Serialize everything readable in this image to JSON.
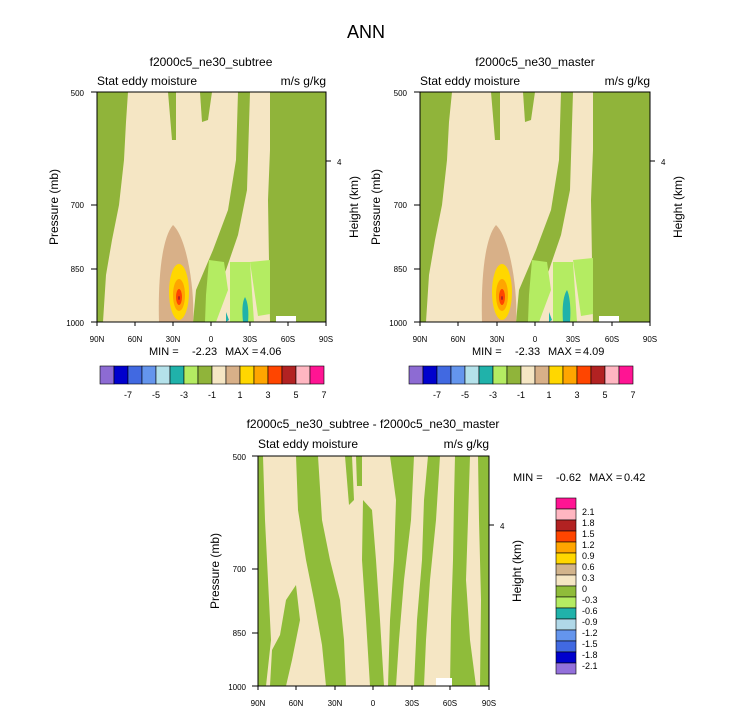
{
  "figure": {
    "title": "ANN"
  },
  "colors": {
    "levels": [
      "#8d6bd3",
      "#0000cd",
      "#4169e1",
      "#6495ed",
      "#b4e1ea",
      "#20b2aa",
      "#b4ec62",
      "#90b43a",
      "#f5e6c4",
      "#d8b088",
      "#ffd700",
      "#ffa500",
      "#ff4500",
      "#b22222",
      "#ffb6c1",
      "#ff1493"
    ],
    "diff_levels": [
      "#9370db",
      "#0000cd",
      "#4169e1",
      "#6495ed",
      "#b0d8e8",
      "#20b2aa",
      "#b4ec62",
      "#8fbc3a",
      "#f5e6c4",
      "#d2b48c",
      "#ffd700",
      "#ffa500",
      "#ff4500",
      "#b22222",
      "#ffb6c1",
      "#ff1493"
    ]
  },
  "panels": [
    {
      "title": "f2000c5_ne30_subtree",
      "left_label": "Stat eddy moisture",
      "right_label": "m/s g/kg",
      "ylabel": "Pressure (mb)",
      "y2label": "Height (km)",
      "min_label": "MIN =",
      "min_value": "-2.23",
      "max_label": "MAX =",
      "max_value": "4.06"
    },
    {
      "title": "f2000c5_ne30_master",
      "left_label": "Stat eddy moisture",
      "right_label": "m/s g/kg",
      "ylabel": "Pressure (mb)",
      "y2label": "Height (km)",
      "min_label": "MIN =",
      "min_value": "-2.33",
      "max_label": "MAX =",
      "max_value": "4.09"
    },
    {
      "title": "f2000c5_ne30_subtree - f2000c5_ne30_master",
      "left_label": "Stat eddy moisture",
      "right_label": "m/s g/kg",
      "ylabel": "Pressure (mb)",
      "y2label": "Height (km)",
      "min_label": "MIN =",
      "min_value": "-0.62",
      "max_label": "MAX =",
      "max_value": "0.42"
    }
  ],
  "colorbar_top": {
    "labels": [
      "-7",
      "-5",
      "-3",
      "-1",
      "1",
      "3",
      "5",
      "7"
    ]
  },
  "colorbar_diff": {
    "labels": [
      "2.1",
      "1.8",
      "1.5",
      "1.2",
      "0.9",
      "0.6",
      "0.3",
      "0",
      "-0.3",
      "-0.6",
      "-0.9",
      "-1.2",
      "-1.5",
      "-1.8",
      "-2.1"
    ]
  },
  "chart_data": [
    {
      "type": "heatmap",
      "title": "f2000c5_ne30_subtree",
      "x_ticks": [
        "90N",
        "60N",
        "30N",
        "0",
        "30S",
        "60S",
        "90S"
      ],
      "x_values": [
        90,
        60,
        30,
        0,
        -30,
        -60,
        -90
      ],
      "y_ticks": [
        "500",
        "700",
        "850",
        "1000"
      ],
      "y_values": [
        500,
        700,
        850,
        1000
      ],
      "ylim": [
        1000,
        500
      ],
      "y2_ticks": [
        "4"
      ],
      "ylabel": "Pressure (mb)",
      "y2label": "Height (km)",
      "min": -2.23,
      "max": 4.06,
      "levels": [
        -7,
        -6,
        -5,
        -4,
        -3,
        -2,
        -1,
        0,
        1,
        2,
        3,
        4,
        5,
        6,
        7
      ]
    },
    {
      "type": "heatmap",
      "title": "f2000c5_ne30_master",
      "x_ticks": [
        "90N",
        "60N",
        "30N",
        "0",
        "30S",
        "60S",
        "90S"
      ],
      "x_values": [
        90,
        60,
        30,
        0,
        -30,
        -60,
        -90
      ],
      "y_ticks": [
        "500",
        "700",
        "850",
        "1000"
      ],
      "y_values": [
        500,
        700,
        850,
        1000
      ],
      "ylim": [
        1000,
        500
      ],
      "y2_ticks": [
        "4"
      ],
      "ylabel": "Pressure (mb)",
      "y2label": "Height (km)",
      "min": -2.33,
      "max": 4.09,
      "levels": [
        -7,
        -6,
        -5,
        -4,
        -3,
        -2,
        -1,
        0,
        1,
        2,
        3,
        4,
        5,
        6,
        7
      ]
    },
    {
      "type": "heatmap",
      "title": "f2000c5_ne30_subtree - f2000c5_ne30_master",
      "x_ticks": [
        "90N",
        "60N",
        "30N",
        "0",
        "30S",
        "60S",
        "90S"
      ],
      "x_values": [
        90,
        60,
        30,
        0,
        -30,
        -60,
        -90
      ],
      "y_ticks": [
        "500",
        "700",
        "850",
        "1000"
      ],
      "y_values": [
        500,
        700,
        850,
        1000
      ],
      "ylim": [
        1000,
        500
      ],
      "y2_ticks": [
        "4"
      ],
      "ylabel": "Pressure (mb)",
      "y2label": "Height (km)",
      "min": -0.62,
      "max": 0.42,
      "levels": [
        -2.1,
        -1.8,
        -1.5,
        -1.2,
        -0.9,
        -0.6,
        -0.3,
        0,
        0.3,
        0.6,
        0.9,
        1.2,
        1.5,
        1.8,
        2.1
      ]
    }
  ]
}
